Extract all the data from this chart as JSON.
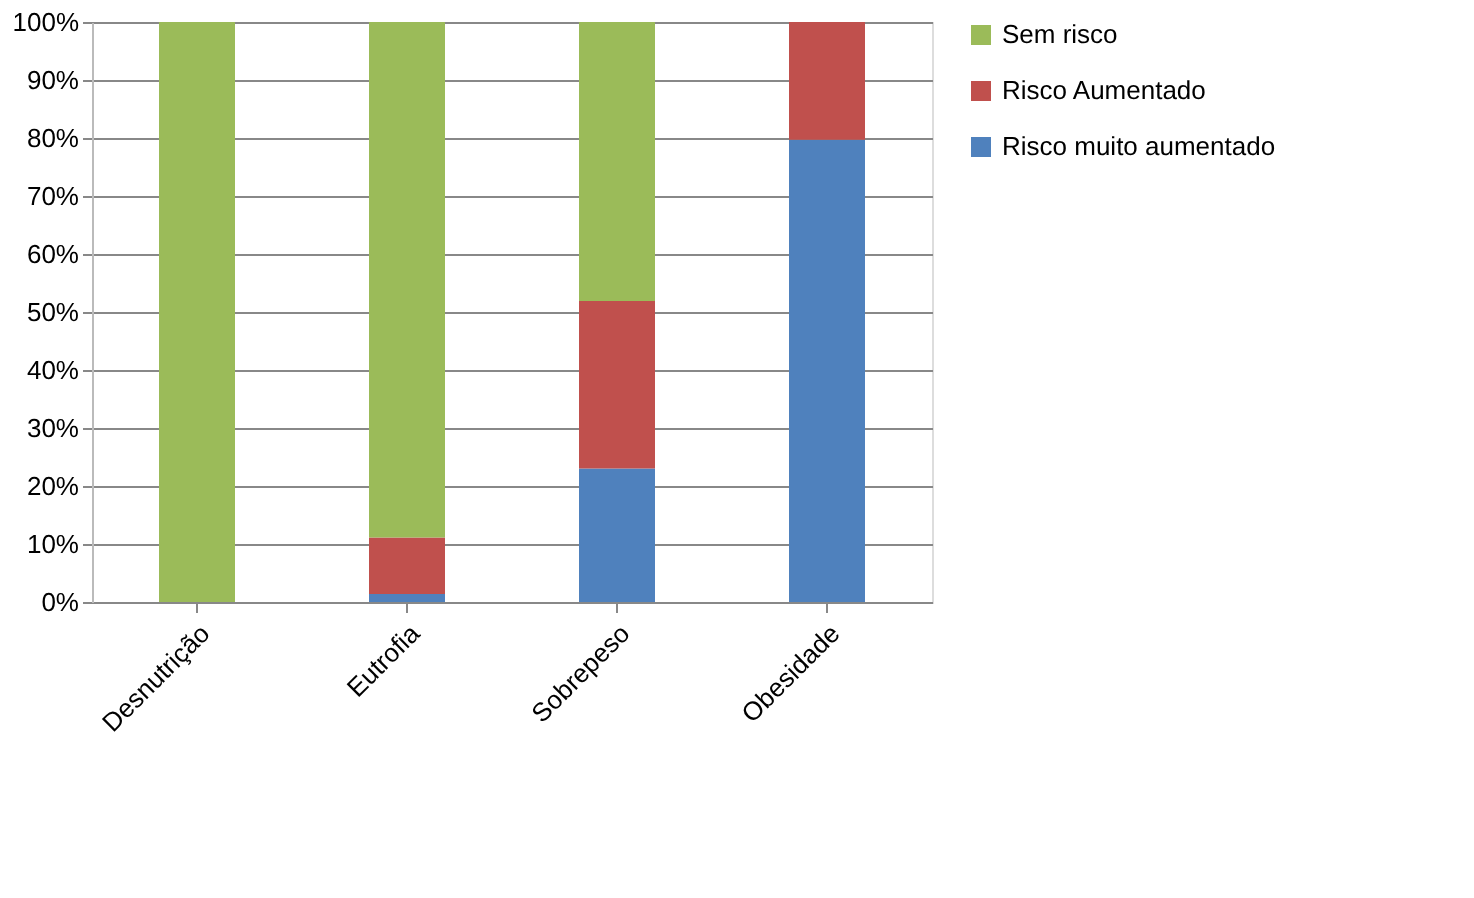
{
  "chart_data": {
    "type": "bar",
    "stacked": true,
    "categories": [
      "Desnutrição",
      "Eutrofia",
      "Sobrepeso",
      "Obesidade"
    ],
    "series": [
      {
        "name": "Risco muito aumentado",
        "color": "#4f81bd",
        "values": [
          0,
          1.4,
          23.0,
          79.7
        ]
      },
      {
        "name": "Risco Aumentado",
        "color": "#c0504d",
        "values": [
          0,
          9.7,
          28.9,
          20.3
        ]
      },
      {
        "name": "Sem risco",
        "color": "#9bbb59",
        "values": [
          100,
          88.9,
          48.1,
          0
        ]
      }
    ],
    "ylim": [
      0,
      100
    ],
    "yticks": [
      {
        "value": 0,
        "label": "0%"
      },
      {
        "value": 10,
        "label": "10%"
      },
      {
        "value": 20,
        "label": "20%"
      },
      {
        "value": 30,
        "label": "30%"
      },
      {
        "value": 40,
        "label": "40%"
      },
      {
        "value": 50,
        "label": "50%"
      },
      {
        "value": 60,
        "label": "60%"
      },
      {
        "value": 70,
        "label": "70%"
      },
      {
        "value": 80,
        "label": "80%"
      },
      {
        "value": 90,
        "label": "90%"
      },
      {
        "value": 100,
        "label": "100%"
      }
    ],
    "grid": "y",
    "legend": "right"
  }
}
